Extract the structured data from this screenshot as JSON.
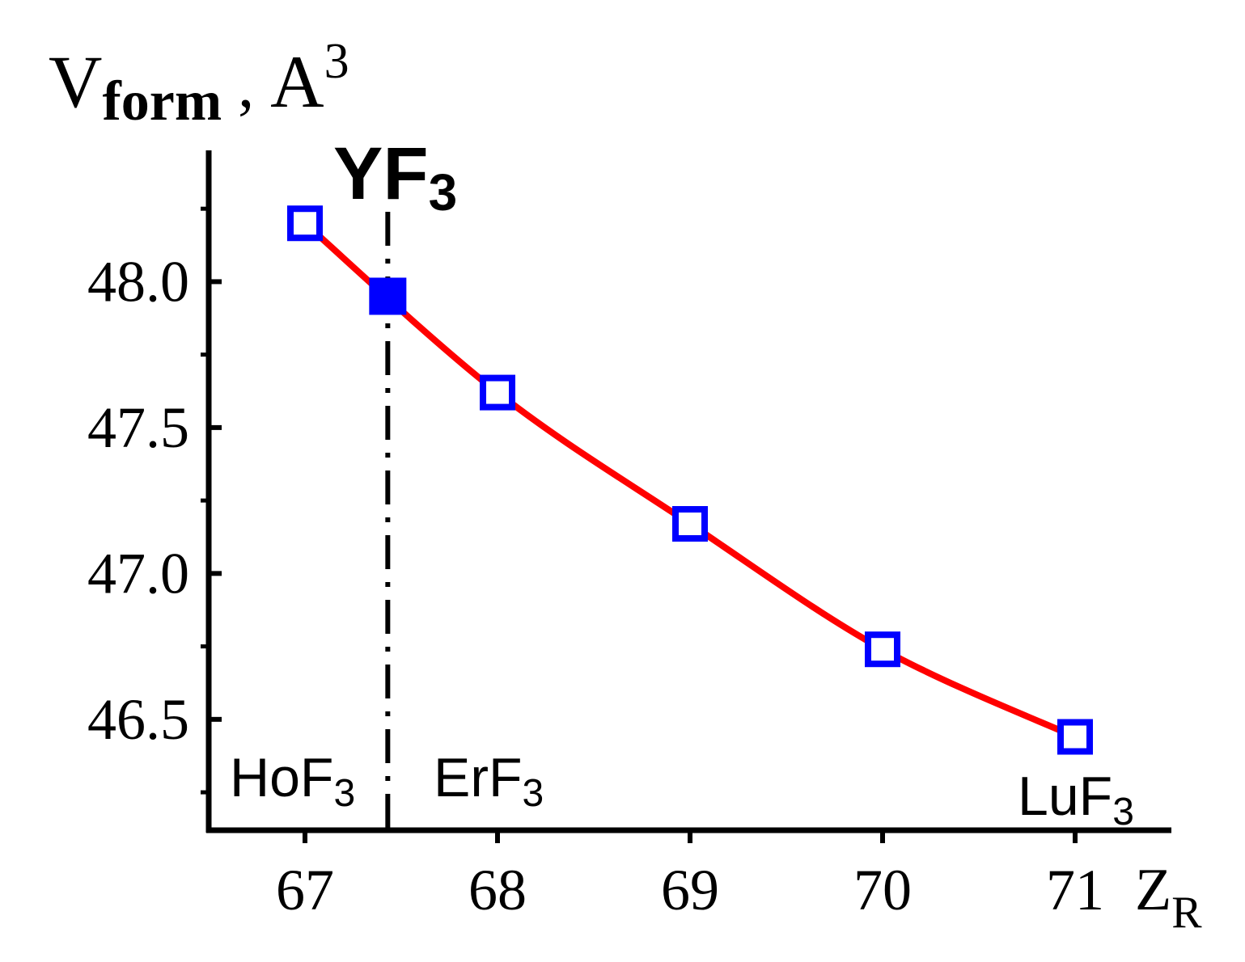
{
  "chart_data": {
    "type": "line",
    "ylabel": {
      "main": "V",
      "sub": "form",
      "sep": " ,  ",
      "unit": "A",
      "sup": "3"
    },
    "xlabel": {
      "main": "Z",
      "sub": "R"
    },
    "x_ticks": [
      "67",
      "68",
      "69",
      "70",
      "71"
    ],
    "y_ticks": [
      "46.5",
      "47.0",
      "47.5",
      "48.0"
    ],
    "xlim": [
      66.5,
      71.5
    ],
    "ylim": [
      46.12,
      48.45
    ],
    "grid": false,
    "series": [
      {
        "values": [
          {
            "x": 67,
            "y": 48.2
          },
          {
            "x": 68,
            "y": 47.62
          },
          {
            "x": 69,
            "y": 47.17
          },
          {
            "x": 70,
            "y": 46.74
          },
          {
            "x": 71,
            "y": 46.44
          }
        ],
        "marker": "open-square",
        "marker_color": "#0000ff",
        "line_color": "#ff0000"
      }
    ],
    "highlight_point": {
      "x": 67.43,
      "y": 47.95,
      "marker": "filled-square",
      "color": "#0000ff"
    },
    "annotations": {
      "yf3": {
        "main": "YF",
        "sub": "3",
        "x": 67.43
      },
      "hof3": {
        "main": "HoF",
        "sub": "3"
      },
      "erf3": {
        "main": "ErF",
        "sub": "3"
      },
      "luf3": {
        "main": "LuF",
        "sub": "3"
      }
    },
    "colors": {
      "axis": "#000000",
      "curve": "#ff0000",
      "marker": "#0000ff"
    }
  }
}
